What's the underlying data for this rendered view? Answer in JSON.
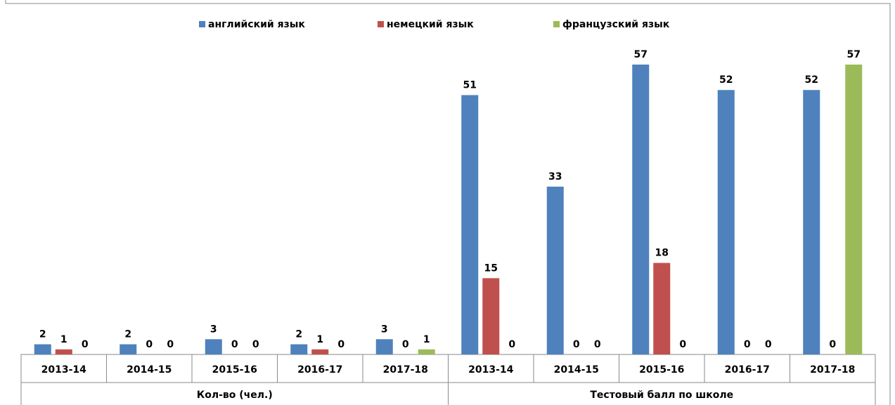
{
  "chart_data": {
    "type": "bar",
    "groups": [
      {
        "name": "Кол-во (чел.)",
        "categories": [
          "2013-14",
          "2014-15",
          "2015-16",
          "2016-17",
          "2017-18"
        ]
      },
      {
        "name": "Тестовый балл по школе",
        "categories": [
          "2013-14",
          "2014-15",
          "2015-16",
          "2016-17",
          "2017-18"
        ]
      }
    ],
    "series": [
      {
        "name": "английский язык",
        "color": "#4f81bd",
        "values": [
          2,
          2,
          3,
          2,
          3,
          51,
          33,
          57,
          52,
          52
        ]
      },
      {
        "name": "немецкий язык",
        "color": "#c0504d",
        "values": [
          1,
          0,
          0,
          1,
          0,
          15,
          0,
          18,
          0,
          0
        ]
      },
      {
        "name": "французский язык",
        "color": "#9bbb59",
        "values": [
          0,
          0,
          0,
          0,
          1,
          0,
          0,
          0,
          0,
          57
        ]
      }
    ],
    "legend": "top"
  }
}
